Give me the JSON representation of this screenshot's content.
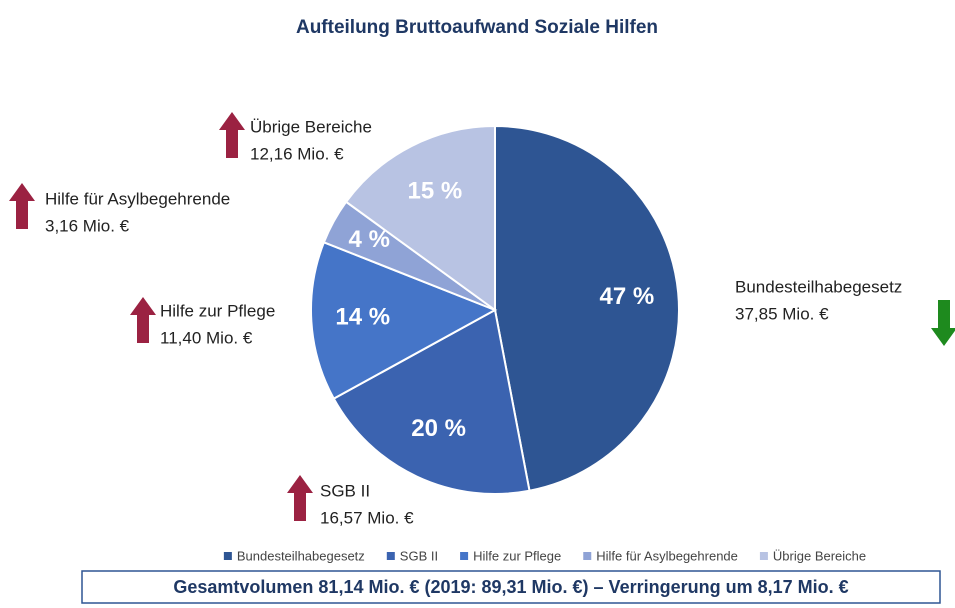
{
  "chart_data": {
    "type": "pie",
    "title": "Aufteilung Bruttoaufwand Soziale Hilfen",
    "categories": [
      "Bundesteilhabegesetz",
      "SGB II",
      "Hilfe zur Pflege",
      "Hilfe für Asylbegehrende",
      "Übrige Bereiche"
    ],
    "values": [
      47,
      20,
      14,
      4,
      15
    ],
    "value_labels": [
      "47 %",
      "20 %",
      "14 %",
      "4 %",
      "15 %"
    ],
    "colors": [
      "#2e5593",
      "#3b63b0",
      "#4575c8",
      "#8fa3d6",
      "#b8c3e3"
    ],
    "annotations": [
      "37,85 Mio. €",
      "16,57 Mio. €",
      "11,40 Mio. €",
      "3,16 Mio. €",
      "12,16 Mio. €"
    ],
    "trend": [
      "down",
      "up",
      "up",
      "up",
      "up"
    ],
    "legend": "bottom",
    "footer": "Gesamtvolumen 81,14 Mio. € (2019: 89,31 Mio. €) – Verringerung um 8,17 Mio. €"
  }
}
